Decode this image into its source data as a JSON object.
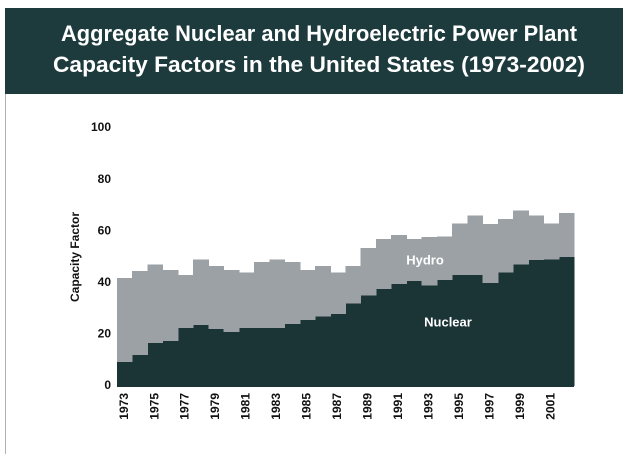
{
  "chart_data": {
    "type": "stacked-step-area",
    "title": [
      "Aggregate Nuclear and Hydroelectric Power Plant",
      "Capacity Factors in the United States (1973-2002)"
    ],
    "y_label": "Capacity Factor",
    "categories": [
      "1973",
      null,
      "1975",
      null,
      "1977",
      null,
      "1979",
      null,
      "1981",
      null,
      "1983",
      null,
      "1985",
      null,
      "1987",
      null,
      "1989",
      null,
      "1991",
      null,
      "1993",
      null,
      "1995",
      null,
      "1997",
      null,
      "1999",
      null,
      "2001",
      null
    ],
    "series": [
      {
        "name": "Nuclear",
        "color": "#1b3436",
        "label_color": "#ffffff",
        "values": [
          9.3,
          12,
          16.7,
          17.4,
          22.5,
          23.6,
          22,
          21,
          22.5,
          22.5,
          22.5,
          24,
          25.6,
          27,
          28,
          32,
          35,
          37.6,
          39.5,
          40.7,
          39,
          41,
          43,
          43,
          40,
          44,
          47,
          48.8,
          49,
          50
        ]
      },
      {
        "name": "Hydro",
        "color": "#9ba1a4",
        "label_color": "#ffffff",
        "values": [
          32.6,
          32.6,
          30.3,
          27.6,
          20.5,
          25.4,
          24.5,
          24,
          21.5,
          25.5,
          26.5,
          24,
          19.4,
          19.5,
          16,
          14.5,
          18.5,
          19.4,
          19,
          16.3,
          18.8,
          17,
          20,
          23,
          22.8,
          20.7,
          21,
          17.2,
          14,
          17
        ]
      }
    ],
    "ylim": [
      0,
      100
    ],
    "yticks": [
      0,
      20,
      40,
      60,
      80,
      100
    ],
    "grid": false
  }
}
